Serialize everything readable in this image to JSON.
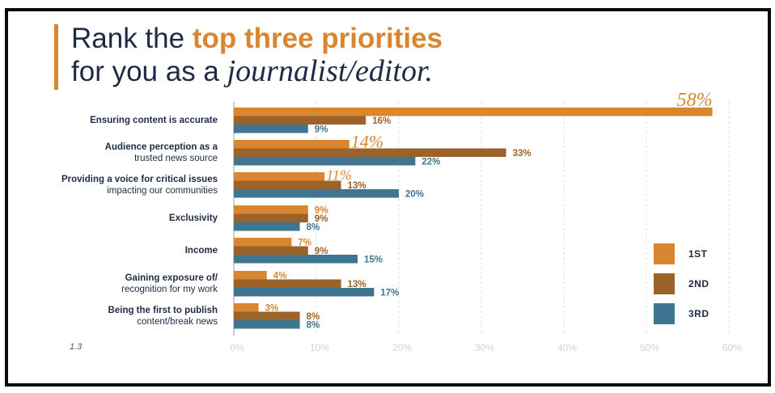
{
  "title": {
    "line1_prefix": "Rank the ",
    "line1_highlight": "top three priorities",
    "line2_prefix": "for you as a ",
    "line2_italic": "journalist/editor."
  },
  "footnote": "1.3",
  "colors": {
    "1st": "#d8862f",
    "2nd": "#9b6229",
    "3rd": "#3e7691",
    "accent": "#d8862f",
    "text": "#1f2b45",
    "grid": "#dedede",
    "tick": "#d3d3d3"
  },
  "legend": [
    {
      "label": "1ST",
      "color": "#d8862f"
    },
    {
      "label": "2ND",
      "color": "#9b6229"
    },
    {
      "label": "3RD",
      "color": "#3e7691"
    }
  ],
  "categories": [
    {
      "l1": "Ensuring content is accurate",
      "l2": ""
    },
    {
      "l1": "Audience perception as a",
      "l2": "trusted news source"
    },
    {
      "l1": "Providing a voice for critical issues",
      "l2": "impacting our communities"
    },
    {
      "l1": "Exclusivity",
      "l2": ""
    },
    {
      "l1": "Income",
      "l2": ""
    },
    {
      "l1": "Gaining exposure of/",
      "l2": "recognition for my work"
    },
    {
      "l1": "Being the first to publish",
      "l2": "content/break news"
    }
  ],
  "chart_data": {
    "type": "bar",
    "orientation": "horizontal",
    "title": "Rank the top three priorities for you as a journalist/editor.",
    "categories": [
      "Ensuring content is accurate",
      "Audience perception as a trusted news source",
      "Providing a voice for critical issues impacting our communities",
      "Exclusivity",
      "Income",
      "Gaining exposure of/ recognition for my work",
      "Being the first to publish content/break news"
    ],
    "series": [
      {
        "name": "1ST",
        "values": [
          58,
          14,
          11,
          9,
          7,
          4,
          3
        ],
        "labels": [
          "58%",
          "14%",
          "11%",
          "9%",
          "7%",
          "4%",
          "3%"
        ]
      },
      {
        "name": "2ND",
        "values": [
          16,
          33,
          13,
          9,
          9,
          13,
          8
        ],
        "labels": [
          "16%",
          "33%",
          "13%",
          "9%",
          "9%",
          "13%",
          "8%"
        ]
      },
      {
        "name": "3RD",
        "values": [
          9,
          22,
          20,
          8,
          15,
          17,
          8
        ],
        "labels": [
          "9%",
          "22%",
          "20%",
          "8%",
          "15%",
          "17%",
          "8%"
        ]
      }
    ],
    "xlim": [
      0,
      60
    ],
    "xticks": [
      "0%",
      "10%",
      "20%",
      "30%",
      "40%",
      "50%",
      "60%"
    ],
    "grid": true,
    "legend_position": "right"
  }
}
